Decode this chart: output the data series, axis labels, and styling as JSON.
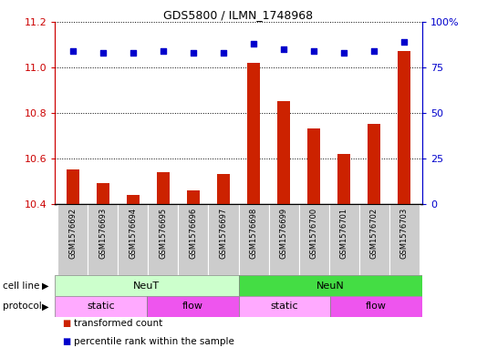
{
  "title": "GDS5800 / ILMN_1748968",
  "samples": [
    "GSM1576692",
    "GSM1576693",
    "GSM1576694",
    "GSM1576695",
    "GSM1576696",
    "GSM1576697",
    "GSM1576698",
    "GSM1576699",
    "GSM1576700",
    "GSM1576701",
    "GSM1576702",
    "GSM1576703"
  ],
  "transformed_count": [
    10.55,
    10.49,
    10.44,
    10.54,
    10.46,
    10.53,
    11.02,
    10.85,
    10.73,
    10.62,
    10.75,
    11.07
  ],
  "percentile_rank": [
    84,
    83,
    83,
    84,
    83,
    83,
    88,
    85,
    84,
    83,
    84,
    89
  ],
  "ylim_left": [
    10.4,
    11.2
  ],
  "ylim_right": [
    0,
    100
  ],
  "yticks_left": [
    10.4,
    10.6,
    10.8,
    11.0,
    11.2
  ],
  "yticks_right": [
    0,
    25,
    50,
    75,
    100
  ],
  "ytick_right_labels": [
    "0",
    "25",
    "50",
    "75",
    "100%"
  ],
  "bar_color": "#cc2200",
  "dot_color": "#0000cc",
  "bar_bottom": 10.4,
  "bar_width": 0.4,
  "cell_line_groups": [
    {
      "label": "NeuT",
      "start": 0,
      "end": 6,
      "color": "#ccffcc"
    },
    {
      "label": "NeuN",
      "start": 6,
      "end": 12,
      "color": "#44dd44"
    }
  ],
  "protocol_groups": [
    {
      "label": "static",
      "start": 0,
      "end": 3,
      "color": "#ffaaff"
    },
    {
      "label": "flow",
      "start": 3,
      "end": 6,
      "color": "#ee55ee"
    },
    {
      "label": "static",
      "start": 6,
      "end": 9,
      "color": "#ffaaff"
    },
    {
      "label": "flow",
      "start": 9,
      "end": 12,
      "color": "#ee55ee"
    }
  ],
  "legend_items": [
    {
      "label": "transformed count",
      "color": "#cc2200"
    },
    {
      "label": "percentile rank within the sample",
      "color": "#0000cc"
    }
  ],
  "bg_color": "#ffffff",
  "plot_bg_color": "#ffffff",
  "col_bg_color": "#cccccc",
  "left_axis_color": "#cc0000",
  "right_axis_color": "#0000cc"
}
